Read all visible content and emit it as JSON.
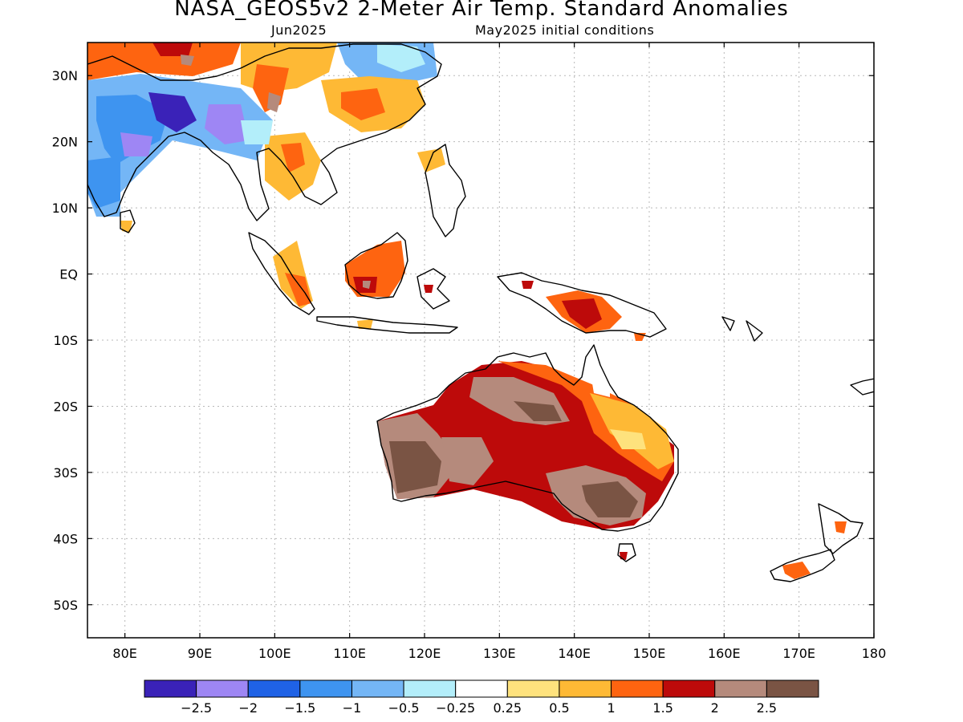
{
  "title": "NASA_GEOS5v2 2-Meter Air Temp. Standard Anomalies",
  "subtitle_left": "Jun2025",
  "subtitle_right": "May2025 initial conditions",
  "axes": {
    "lon_labels": [
      "80E",
      "90E",
      "100E",
      "110E",
      "120E",
      "130E",
      "140E",
      "150E",
      "160E",
      "170E",
      "180"
    ],
    "lat_labels": [
      "30N",
      "20N",
      "10N",
      "EQ",
      "10S",
      "20S",
      "30S",
      "40S",
      "50S"
    ],
    "lon_range": [
      75,
      180
    ],
    "lat_range": [
      -55,
      35
    ],
    "grid": true
  },
  "colorbar": {
    "colors": [
      "#3a22b8",
      "#9e86f4",
      "#1f62e6",
      "#3e94f0",
      "#74b6f6",
      "#b3eefa",
      "#ffffff",
      "#fee27d",
      "#feb935",
      "#fe6410",
      "#bd0a0a",
      "#b58a7c",
      "#7a5444"
    ],
    "labels": [
      "−2.5",
      "−2",
      "−1.5",
      "−1",
      "−0.5",
      "−0.25",
      "0.25",
      "0.5",
      "1",
      "1.5",
      "2",
      "2.5"
    ]
  }
}
